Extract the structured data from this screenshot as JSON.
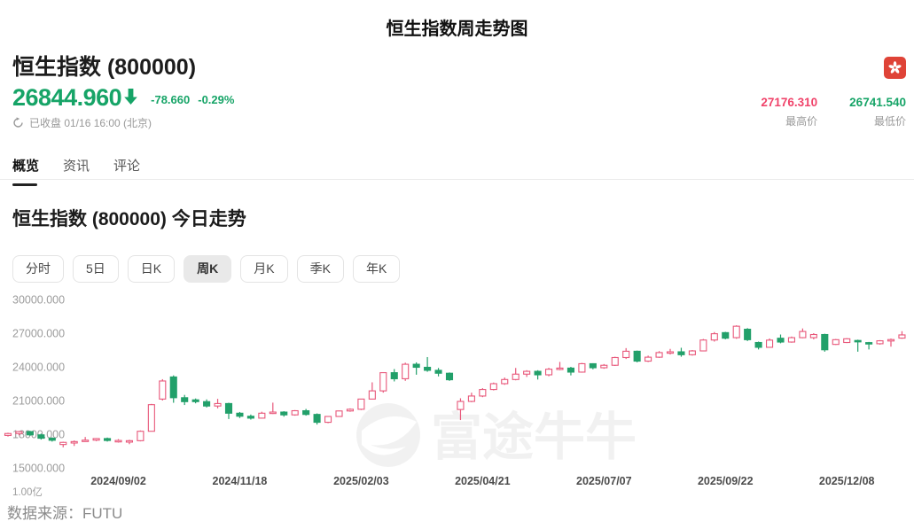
{
  "page": {
    "title": "恒生指数周走势图",
    "source_note": "数据来源：FUTU"
  },
  "header": {
    "name": "恒生指数 (800000)",
    "price": "26844.960",
    "direction_arrow": "down",
    "change": "-78.660",
    "change_pct": "-0.29%",
    "status": "已收盘 01/16 16:00 (北京)",
    "high": {
      "value": "27176.310",
      "label": "最高价"
    },
    "low": {
      "value": "26741.540",
      "label": "最低价"
    },
    "flag": "hong-kong-flag"
  },
  "tabs": [
    {
      "label": "概览",
      "active": true
    },
    {
      "label": "资讯",
      "active": false
    },
    {
      "label": "评论",
      "active": false
    }
  ],
  "section_title": "恒生指数 (800000) 今日走势",
  "periods": [
    {
      "label": "分时",
      "active": false
    },
    {
      "label": "5日",
      "active": false
    },
    {
      "label": "日K",
      "active": false
    },
    {
      "label": "周K",
      "active": true
    },
    {
      "label": "月K",
      "active": false
    },
    {
      "label": "季K",
      "active": false
    },
    {
      "label": "年K",
      "active": false
    }
  ],
  "colors": {
    "up_candle": "#e8577a",
    "down_candle": "#22a06a",
    "price_green": "#16a467",
    "price_red": "#f0436a",
    "axis_text": "#9c9c9c",
    "x_tick_text": "#4c4c4c",
    "watermark": "#000000"
  },
  "chart_data": {
    "type": "candlestick",
    "title": "恒生指数 (800000) 周K",
    "ylabel": "",
    "xlabel": "",
    "ylim": [
      15000,
      30000
    ],
    "grid": false,
    "legend": "none",
    "watermark_text": "富途牛牛",
    "y_ticks": [
      "30000.000",
      "27000.000",
      "24000.000",
      "21000.000",
      "18000.000",
      "15000.000"
    ],
    "y_tick_values": [
      30000,
      27000,
      24000,
      21000,
      18000,
      15000
    ],
    "x_ticks": [
      "2024/09/02",
      "2024/11/18",
      "2025/02/03",
      "2025/04/21",
      "2025/07/07",
      "2025/09/22",
      "2025/12/08"
    ],
    "x_tick_indices": [
      10,
      21,
      32,
      43,
      54,
      65,
      76
    ],
    "volume_tick": "1.00亿",
    "candles_format": [
      "week_start_date",
      "open",
      "high",
      "low",
      "close"
    ],
    "up_means": "close >= open (hollow red)",
    "down_means": "close < open (solid green)",
    "candles": [
      [
        "2024/06/24",
        17890,
        18130,
        17790,
        18060
      ],
      [
        "2024/07/01",
        18060,
        18290,
        17900,
        18230
      ],
      [
        "2024/07/08",
        18230,
        18300,
        17850,
        17940
      ],
      [
        "2024/07/15",
        17940,
        18050,
        17520,
        17640
      ],
      [
        "2024/07/22",
        17640,
        17720,
        17340,
        17460
      ],
      [
        "2024/07/29",
        17080,
        17330,
        16830,
        17270
      ],
      [
        "2024/08/05",
        17270,
        17440,
        16950,
        17340
      ],
      [
        "2024/08/12",
        17400,
        17750,
        17330,
        17470
      ],
      [
        "2024/08/19",
        17470,
        17650,
        17380,
        17610
      ],
      [
        "2024/08/26",
        17610,
        17700,
        17340,
        17440
      ],
      [
        "2024/09/02",
        17370,
        17560,
        17250,
        17440
      ],
      [
        "2024/09/09",
        17310,
        17500,
        17110,
        17420
      ],
      [
        "2024/09/16",
        17420,
        18330,
        17360,
        18260
      ],
      [
        "2024/09/23",
        18260,
        20700,
        18250,
        20630
      ],
      [
        "2024/09/30",
        21130,
        22900,
        21000,
        22740
      ],
      [
        "2024/10/07",
        23100,
        23240,
        20800,
        21250
      ],
      [
        "2024/10/14",
        21250,
        21500,
        20600,
        20900
      ],
      [
        "2024/10/21",
        21060,
        21180,
        20750,
        20900
      ],
      [
        "2024/10/28",
        20900,
        21100,
        20380,
        20510
      ],
      [
        "2024/11/04",
        20510,
        21150,
        20300,
        20730
      ],
      [
        "2024/11/11",
        20730,
        20800,
        19350,
        19870
      ],
      [
        "2024/11/18",
        19870,
        19980,
        19440,
        19600
      ],
      [
        "2024/11/25",
        19600,
        19750,
        19300,
        19430
      ],
      [
        "2024/12/02",
        19430,
        20000,
        19400,
        19870
      ],
      [
        "2024/12/09",
        19870,
        20810,
        19800,
        19970
      ],
      [
        "2024/12/16",
        19970,
        20050,
        19560,
        19720
      ],
      [
        "2024/12/23",
        19720,
        20150,
        19650,
        20090
      ],
      [
        "2024/12/30",
        20090,
        20250,
        19650,
        19760
      ],
      [
        "2025/01/06",
        19760,
        19850,
        18860,
        19060
      ],
      [
        "2025/01/13",
        19060,
        19600,
        18980,
        19580
      ],
      [
        "2025/01/20",
        19580,
        20100,
        19550,
        20070
      ],
      [
        "2025/01/27",
        20070,
        20300,
        20000,
        20220
      ],
      [
        "2025/02/03",
        20220,
        21150,
        20150,
        21130
      ],
      [
        "2025/02/10",
        21130,
        22620,
        21110,
        21860
      ],
      [
        "2025/02/17",
        21860,
        23500,
        21700,
        23480
      ],
      [
        "2025/02/24",
        23480,
        23800,
        22700,
        22940
      ],
      [
        "2025/03/03",
        22940,
        24370,
        22750,
        24230
      ],
      [
        "2025/03/10",
        24230,
        24400,
        23300,
        23960
      ],
      [
        "2025/03/17",
        23960,
        24870,
        23560,
        23690
      ],
      [
        "2025/03/24",
        23690,
        23900,
        23150,
        23430
      ],
      [
        "2025/03/31",
        23430,
        23500,
        22750,
        22850
      ],
      [
        "2025/04/07",
        20200,
        21200,
        19260,
        20920
      ],
      [
        "2025/04/14",
        20920,
        21700,
        20850,
        21400
      ],
      [
        "2025/04/21",
        21400,
        22100,
        21300,
        21980
      ],
      [
        "2025/04/28",
        21980,
        22600,
        21900,
        22500
      ],
      [
        "2025/05/05",
        22500,
        23050,
        22400,
        22870
      ],
      [
        "2025/05/12",
        22870,
        23900,
        22800,
        23350
      ],
      [
        "2025/05/19",
        23350,
        23700,
        23100,
        23600
      ],
      [
        "2025/05/26",
        23600,
        23700,
        22870,
        23290
      ],
      [
        "2025/06/02",
        23290,
        23910,
        23160,
        23790
      ],
      [
        "2025/06/09",
        23790,
        24440,
        23700,
        23890
      ],
      [
        "2025/06/16",
        23890,
        24000,
        23240,
        23530
      ],
      [
        "2025/06/23",
        23530,
        24350,
        23480,
        24280
      ],
      [
        "2025/06/30",
        24280,
        24320,
        23780,
        23920
      ],
      [
        "2025/07/07",
        23920,
        24250,
        23830,
        24140
      ],
      [
        "2025/07/14",
        24140,
        24900,
        24080,
        24830
      ],
      [
        "2025/07/21",
        24830,
        25670,
        24700,
        25390
      ],
      [
        "2025/07/28",
        25390,
        25450,
        24400,
        24510
      ],
      [
        "2025/08/04",
        24510,
        25000,
        24430,
        24860
      ],
      [
        "2025/08/11",
        24860,
        25400,
        24800,
        25270
      ],
      [
        "2025/08/18",
        25270,
        25600,
        25100,
        25340
      ],
      [
        "2025/08/25",
        25340,
        25700,
        24900,
        25080
      ],
      [
        "2025/09/01",
        25080,
        25500,
        25000,
        25420
      ],
      [
        "2025/09/08",
        25420,
        26480,
        25380,
        26390
      ],
      [
        "2025/09/15",
        26390,
        27100,
        26250,
        26950
      ],
      [
        "2025/09/22",
        27050,
        27120,
        26450,
        26550
      ],
      [
        "2025/09/29",
        26600,
        27700,
        26500,
        27620
      ],
      [
        "2025/10/06",
        27350,
        27450,
        26300,
        26420
      ],
      [
        "2025/10/13",
        26170,
        26250,
        25550,
        25740
      ],
      [
        "2025/10/20",
        25740,
        26530,
        25700,
        26380
      ],
      [
        "2025/10/27",
        26550,
        26880,
        26100,
        26210
      ],
      [
        "2025/11/03",
        26210,
        26700,
        26150,
        26600
      ],
      [
        "2025/11/10",
        26600,
        27420,
        26550,
        27150
      ],
      [
        "2025/11/17",
        26600,
        27000,
        26450,
        26880
      ],
      [
        "2025/11/24",
        26880,
        26950,
        25350,
        25520
      ],
      [
        "2025/12/01",
        26000,
        26480,
        25950,
        26420
      ],
      [
        "2025/12/08",
        26170,
        26560,
        26120,
        26500
      ],
      [
        "2025/12/15",
        26350,
        26420,
        25350,
        26280
      ],
      [
        "2025/12/22",
        26160,
        26220,
        25550,
        26060
      ],
      [
        "2025/12/29",
        26060,
        26380,
        25980,
        26320
      ],
      [
        "2026/01/05",
        26320,
        26520,
        25800,
        26430
      ],
      [
        "2026/01/12",
        26560,
        27176.31,
        26500,
        26844.96
      ]
    ]
  }
}
